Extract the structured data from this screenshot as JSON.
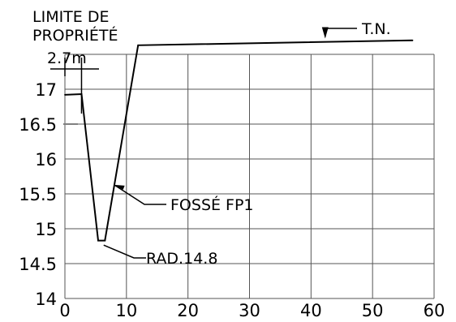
{
  "chart_data": {
    "type": "line",
    "title": "",
    "xlabel": "",
    "ylabel": "",
    "xlim": [
      0,
      60
    ],
    "ylim": [
      14,
      17.5
    ],
    "x_ticks": [
      0,
      10,
      20,
      30,
      40,
      50,
      60
    ],
    "y_ticks": [
      14,
      14.5,
      15,
      15.5,
      16,
      16.5,
      17
    ],
    "grid": true,
    "colors": {
      "grid": "#555555",
      "profile": "#000000",
      "marker": "#808080"
    },
    "series": [
      {
        "points": [
          {
            "x": 0,
            "y": 16.92
          },
          {
            "x": 2.7,
            "y": 16.93
          },
          {
            "x": 5.4,
            "y": 14.83
          },
          {
            "x": 6.5,
            "y": 14.83
          },
          {
            "x": 11.9,
            "y": 17.63
          },
          {
            "x": 56.5,
            "y": 17.7
          }
        ]
      }
    ],
    "reference_marks": [
      {
        "x": 0,
        "y": 16.5
      }
    ],
    "annotations": {
      "limit": {
        "line1": "LIMITE DE",
        "line2": "PROPRIÉTÉ",
        "dimension": "2.7m",
        "x": 2.7
      },
      "terrain": {
        "text": "T.N.",
        "x": 42.3,
        "y": 17.68
      },
      "ditch": {
        "text": "FOSSÉ FP1",
        "x": 8.0,
        "y": 15.63
      },
      "radier": {
        "text": "RAD.14.8",
        "x": 6.3,
        "y": 14.8
      }
    }
  }
}
